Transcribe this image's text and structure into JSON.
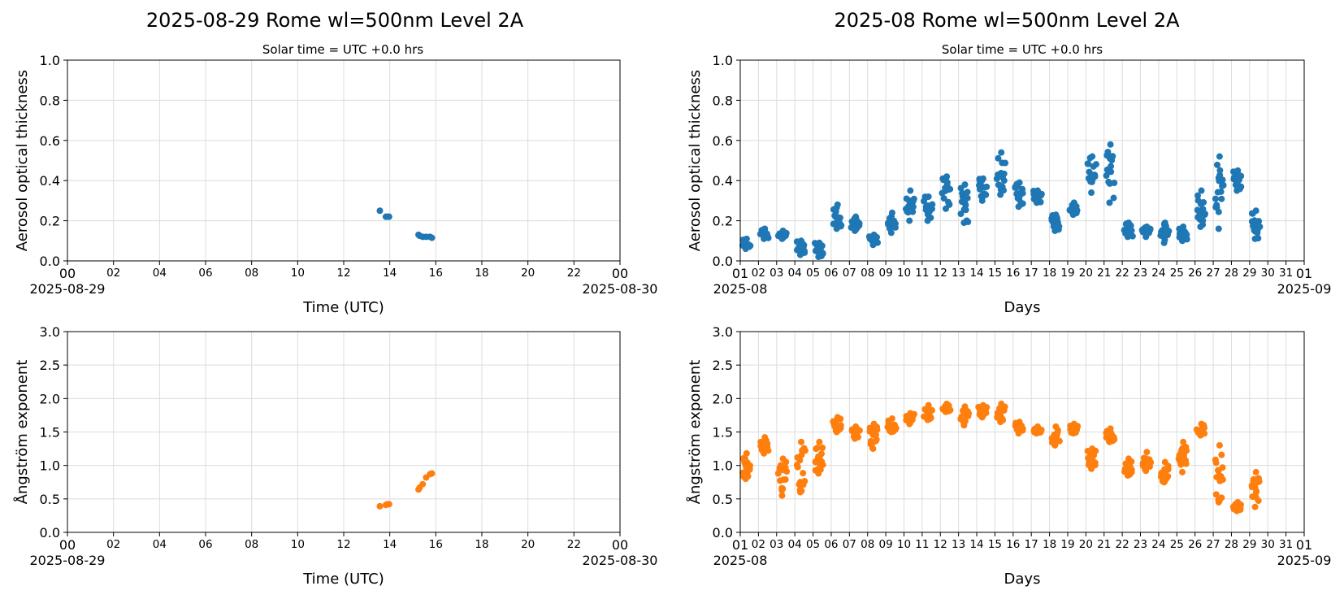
{
  "figure": {
    "colors": {
      "aot": "#1f77b4",
      "angstrom": "#ff7f0e",
      "grid": "#dcdcdc"
    }
  },
  "chart_data": [
    {
      "id": "daily-aot",
      "type": "scatter",
      "title": "2025-08-29  Rome  wl=500nm  Level 2A",
      "subtitle": "Solar time = UTC +0.0 hrs",
      "xlabel": "Time (UTC)",
      "ylabel": "Aerosol optical thickness",
      "xlim": [
        "2025-08-29 00:00",
        "2025-08-30 00:00"
      ],
      "ylim": [
        0,
        1.0
      ],
      "x_ticks": [
        "00",
        "02",
        "04",
        "06",
        "08",
        "10",
        "12",
        "14",
        "16",
        "18",
        "20",
        "22",
        "00"
      ],
      "x_tick_hours": [
        0,
        2,
        4,
        6,
        8,
        10,
        12,
        14,
        16,
        18,
        20,
        22,
        24
      ],
      "x_start_label": "2025-08-29",
      "x_end_label": "2025-08-30",
      "y_ticks": [
        "0.0",
        "0.2",
        "0.4",
        "0.6",
        "0.8",
        "1.0"
      ],
      "y_tick_values": [
        0,
        0.2,
        0.4,
        0.6,
        0.8,
        1.0
      ],
      "grid": true,
      "color": "#1f77b4",
      "series": [
        {
          "x": [
            "13:34",
            "13:50",
            "13:54",
            "13:58",
            "15:15",
            "15:18",
            "15:26",
            "15:35",
            "15:45",
            "15:50"
          ],
          "x_hours": [
            13.57,
            13.83,
            13.9,
            13.97,
            15.25,
            15.3,
            15.43,
            15.58,
            15.75,
            15.83
          ],
          "y": [
            0.25,
            0.22,
            0.22,
            0.22,
            0.13,
            0.125,
            0.12,
            0.12,
            0.12,
            0.115
          ]
        }
      ]
    },
    {
      "id": "monthly-aot",
      "type": "scatter",
      "title": "2025-08  Rome  wl=500nm  Level 2A",
      "subtitle": "Solar time = UTC +0.0 hrs",
      "xlabel": "Days",
      "ylabel": "Aerosol optical thickness",
      "xlim": [
        "2025-08-01",
        "2025-09-01"
      ],
      "ylim": [
        0,
        1.0
      ],
      "x_ticks": [
        "01",
        "02",
        "03",
        "04",
        "05",
        "06",
        "07",
        "08",
        "09",
        "10",
        "11",
        "12",
        "13",
        "14",
        "15",
        "16",
        "17",
        "18",
        "19",
        "20",
        "21",
        "22",
        "23",
        "24",
        "25",
        "26",
        "27",
        "28",
        "29",
        "30",
        "31",
        "01"
      ],
      "x_start_label": "2025-08",
      "x_end_label": "2025-09",
      "y_ticks": [
        "0.0",
        "0.2",
        "0.4",
        "0.6",
        "0.8",
        "1.0"
      ],
      "y_tick_values": [
        0,
        0.2,
        0.4,
        0.6,
        0.8,
        1.0
      ],
      "grid": true,
      "color": "#1f77b4",
      "daily_ranges": [
        {
          "day": 1,
          "min": 0.06,
          "max": 0.11
        },
        {
          "day": 2,
          "min": 0.11,
          "max": 0.16
        },
        {
          "day": 3,
          "min": 0.11,
          "max": 0.15
        },
        {
          "day": 4,
          "min": 0.03,
          "max": 0.1
        },
        {
          "day": 5,
          "min": 0.02,
          "max": 0.09
        },
        {
          "day": 6,
          "min": 0.16,
          "max": 0.28
        },
        {
          "day": 7,
          "min": 0.15,
          "max": 0.22
        },
        {
          "day": 8,
          "min": 0.08,
          "max": 0.13
        },
        {
          "day": 9,
          "min": 0.14,
          "max": 0.24
        },
        {
          "day": 10,
          "min": 0.2,
          "max": 0.35
        },
        {
          "day": 11,
          "min": 0.2,
          "max": 0.32
        },
        {
          "day": 12,
          "min": 0.26,
          "max": 0.42
        },
        {
          "day": 13,
          "min": 0.19,
          "max": 0.38
        },
        {
          "day": 14,
          "min": 0.3,
          "max": 0.41
        },
        {
          "day": 15,
          "min": 0.33,
          "max": 0.54
        },
        {
          "day": 16,
          "min": 0.27,
          "max": 0.39
        },
        {
          "day": 17,
          "min": 0.29,
          "max": 0.35
        },
        {
          "day": 18,
          "min": 0.15,
          "max": 0.23
        },
        {
          "day": 19,
          "min": 0.23,
          "max": 0.29
        },
        {
          "day": 20,
          "min": 0.34,
          "max": 0.52
        },
        {
          "day": 21,
          "min": 0.29,
          "max": 0.58
        },
        {
          "day": 22,
          "min": 0.12,
          "max": 0.19
        },
        {
          "day": 23,
          "min": 0.12,
          "max": 0.17
        },
        {
          "day": 24,
          "min": 0.09,
          "max": 0.19
        },
        {
          "day": 25,
          "min": 0.1,
          "max": 0.17
        },
        {
          "day": 26,
          "min": 0.17,
          "max": 0.35
        },
        {
          "day": 27,
          "min": 0.16,
          "max": 0.52
        },
        {
          "day": 28,
          "min": 0.35,
          "max": 0.45
        },
        {
          "day": 29,
          "min": 0.11,
          "max": 0.25
        }
      ]
    },
    {
      "id": "daily-angstrom",
      "type": "scatter",
      "title": "",
      "xlabel": "Time (UTC)",
      "ylabel": "Ångström exponent",
      "xlim": [
        "2025-08-29 00:00",
        "2025-08-30 00:00"
      ],
      "ylim": [
        0,
        3.0
      ],
      "x_ticks": [
        "00",
        "02",
        "04",
        "06",
        "08",
        "10",
        "12",
        "14",
        "16",
        "18",
        "20",
        "22",
        "00"
      ],
      "x_tick_hours": [
        0,
        2,
        4,
        6,
        8,
        10,
        12,
        14,
        16,
        18,
        20,
        22,
        24
      ],
      "x_start_label": "2025-08-29",
      "x_end_label": "2025-08-30",
      "y_ticks": [
        "0.0",
        "0.5",
        "1.0",
        "1.5",
        "2.0",
        "2.5",
        "3.0"
      ],
      "y_tick_values": [
        0,
        0.5,
        1.0,
        1.5,
        2.0,
        2.5,
        3.0
      ],
      "grid": true,
      "color": "#ff7f0e",
      "series": [
        {
          "x": [
            "13:34",
            "13:50",
            "13:54",
            "13:58",
            "15:15",
            "15:18",
            "15:26",
            "15:35",
            "15:45",
            "15:50"
          ],
          "x_hours": [
            13.57,
            13.83,
            13.9,
            13.97,
            15.25,
            15.3,
            15.43,
            15.58,
            15.75,
            15.83
          ],
          "y": [
            0.39,
            0.41,
            0.42,
            0.42,
            0.64,
            0.67,
            0.72,
            0.82,
            0.87,
            0.88
          ]
        }
      ]
    },
    {
      "id": "monthly-angstrom",
      "type": "scatter",
      "title": "",
      "xlabel": "Days",
      "ylabel": "Ångström exponent",
      "xlim": [
        "2025-08-01",
        "2025-09-01"
      ],
      "ylim": [
        0,
        3.0
      ],
      "x_ticks": [
        "01",
        "02",
        "03",
        "04",
        "05",
        "06",
        "07",
        "08",
        "09",
        "10",
        "11",
        "12",
        "13",
        "14",
        "15",
        "16",
        "17",
        "18",
        "19",
        "20",
        "21",
        "22",
        "23",
        "24",
        "25",
        "26",
        "27",
        "28",
        "29",
        "30",
        "31",
        "01"
      ],
      "x_start_label": "2025-08",
      "x_end_label": "2025-09",
      "y_ticks": [
        "0.0",
        "0.5",
        "1.0",
        "1.5",
        "2.0",
        "2.5",
        "3.0"
      ],
      "y_tick_values": [
        0,
        0.5,
        1.0,
        1.5,
        2.0,
        2.5,
        3.0
      ],
      "grid": true,
      "color": "#ff7f0e",
      "daily_ranges": [
        {
          "day": 1,
          "min": 0.8,
          "max": 1.18
        },
        {
          "day": 2,
          "min": 1.18,
          "max": 1.42
        },
        {
          "day": 3,
          "min": 0.55,
          "max": 1.1
        },
        {
          "day": 4,
          "min": 0.6,
          "max": 1.35
        },
        {
          "day": 5,
          "min": 0.88,
          "max": 1.35
        },
        {
          "day": 6,
          "min": 1.5,
          "max": 1.72
        },
        {
          "day": 7,
          "min": 1.4,
          "max": 1.58
        },
        {
          "day": 8,
          "min": 1.25,
          "max": 1.62
        },
        {
          "day": 9,
          "min": 1.5,
          "max": 1.7
        },
        {
          "day": 10,
          "min": 1.62,
          "max": 1.78
        },
        {
          "day": 11,
          "min": 1.68,
          "max": 1.9
        },
        {
          "day": 12,
          "min": 1.8,
          "max": 1.92
        },
        {
          "day": 13,
          "min": 1.6,
          "max": 1.88
        },
        {
          "day": 14,
          "min": 1.72,
          "max": 1.9
        },
        {
          "day": 15,
          "min": 1.65,
          "max": 1.92
        },
        {
          "day": 16,
          "min": 1.48,
          "max": 1.65
        },
        {
          "day": 17,
          "min": 1.48,
          "max": 1.58
        },
        {
          "day": 18,
          "min": 1.3,
          "max": 1.58
        },
        {
          "day": 19,
          "min": 1.48,
          "max": 1.62
        },
        {
          "day": 20,
          "min": 0.95,
          "max": 1.25
        },
        {
          "day": 21,
          "min": 1.35,
          "max": 1.55
        },
        {
          "day": 22,
          "min": 0.85,
          "max": 1.1
        },
        {
          "day": 23,
          "min": 0.92,
          "max": 1.2
        },
        {
          "day": 24,
          "min": 0.75,
          "max": 1.05
        },
        {
          "day": 25,
          "min": 0.9,
          "max": 1.35
        },
        {
          "day": 26,
          "min": 1.45,
          "max": 1.62
        },
        {
          "day": 27,
          "min": 0.45,
          "max": 1.3
        },
        {
          "day": 28,
          "min": 0.32,
          "max": 0.45
        },
        {
          "day": 29,
          "min": 0.38,
          "max": 0.9
        }
      ]
    }
  ]
}
